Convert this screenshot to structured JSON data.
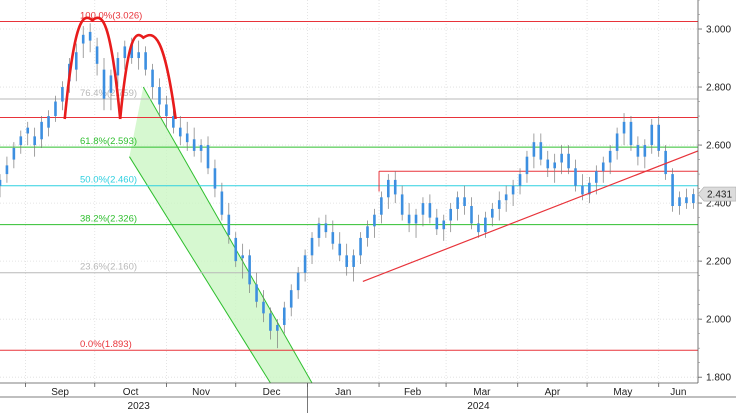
{
  "chart_data": {
    "type": "candlestick",
    "ylim": [
      1.78,
      3.1
    ],
    "y_ticks": [
      {
        "value": 1.8,
        "label": "1.800"
      },
      {
        "value": 2.0,
        "label": "2.000"
      },
      {
        "value": 2.2,
        "label": "2.200"
      },
      {
        "value": 2.4,
        "label": "2.400"
      },
      {
        "value": 2.6,
        "label": "2.600"
      },
      {
        "value": 2.8,
        "label": "2.800"
      },
      {
        "value": 3.0,
        "label": "3.000"
      }
    ],
    "x_axis": {
      "start": "2023-08-21",
      "end": "2024-06-18",
      "month_ticks": [
        {
          "date": "2023-09-01",
          "label": "Sep"
        },
        {
          "date": "2023-10-01",
          "label": "Oct"
        },
        {
          "date": "2023-11-01",
          "label": "Nov"
        },
        {
          "date": "2023-12-01",
          "label": "Dec"
        },
        {
          "date": "2024-01-01",
          "label": "Jan"
        },
        {
          "date": "2024-02-01",
          "label": "Feb"
        },
        {
          "date": "2024-03-01",
          "label": "Mar"
        },
        {
          "date": "2024-04-01",
          "label": "Apr"
        },
        {
          "date": "2024-05-01",
          "label": "May"
        },
        {
          "date": "2024-06-01",
          "label": "Jun"
        }
      ],
      "year_labels": [
        {
          "date": "2023-10-20",
          "label": "2023"
        },
        {
          "date": "2024-03-15",
          "label": "2024"
        }
      ],
      "year_divider": "2024-01-01"
    },
    "last_value": {
      "value": 2.431,
      "label": "2.431"
    },
    "fib_levels": [
      {
        "value": 3.026,
        "label": "100.0%(3.026)",
        "color": "#e8333a"
      },
      {
        "value": 2.759,
        "label": "76.4%(2.759)",
        "color": "#b8b8b8"
      },
      {
        "value": 2.593,
        "label": "61.8%(2.593)",
        "color": "#2fbf2f"
      },
      {
        "value": 2.46,
        "label": "50.0%(2.460)",
        "color": "#2fd0e0"
      },
      {
        "value": 2.326,
        "label": "38.2%(2.326)",
        "color": "#2fbf2f"
      },
      {
        "value": 2.16,
        "label": "23.6%(2.160)",
        "color": "#b8b8b8"
      },
      {
        "value": 1.893,
        "label": "0.0%(1.893)",
        "color": "#e8333a"
      }
    ],
    "neckline": {
      "value": 2.695,
      "color": "#e8333a"
    },
    "breakout_level": {
      "value": 2.51,
      "start": "2024-02-01",
      "color": "#e8333a"
    },
    "trend_line": {
      "from": {
        "date": "2024-01-25",
        "value": 2.13
      },
      "to": {
        "date": "2024-06-18",
        "value": 2.58
      },
      "color": "#e8333a"
    },
    "channel": {
      "upper": [
        {
          "date": "2023-10-22",
          "value": 2.8
        },
        {
          "date": "2024-01-03",
          "value": 1.78
        }
      ],
      "lower": [
        {
          "date": "2023-10-16",
          "value": 2.56
        },
        {
          "date": "2023-12-16",
          "value": 1.78
        }
      ],
      "color": "#2fbf2f"
    },
    "pattern_arcs": [
      {
        "start": {
          "date": "2023-09-18",
          "value": 2.69
        },
        "peak": {
          "date": "2023-09-30",
          "value": 3.03
        },
        "end": {
          "date": "2023-10-12",
          "value": 2.69
        }
      },
      {
        "start": {
          "date": "2023-10-12",
          "value": 2.69
        },
        "peak": {
          "date": "2023-10-22",
          "value": 2.97
        },
        "end": {
          "date": "2023-11-05",
          "value": 2.69
        }
      }
    ],
    "candle_color": "#3d8fe0",
    "candles": [
      [
        "2023-08-21",
        2.46,
        2.5,
        2.42,
        2.48
      ],
      [
        "2023-08-24",
        2.5,
        2.56,
        2.47,
        2.53
      ],
      [
        "2023-08-27",
        2.55,
        2.61,
        2.52,
        2.59
      ],
      [
        "2023-08-30",
        2.6,
        2.65,
        2.57,
        2.63
      ],
      [
        "2023-09-02",
        2.64,
        2.68,
        2.6,
        2.66
      ],
      [
        "2023-09-05",
        2.63,
        2.66,
        2.56,
        2.6
      ],
      [
        "2023-09-08",
        2.62,
        2.7,
        2.59,
        2.68
      ],
      [
        "2023-09-11",
        2.66,
        2.72,
        2.63,
        2.7
      ],
      [
        "2023-09-14",
        2.7,
        2.77,
        2.68,
        2.75
      ],
      [
        "2023-09-17",
        2.75,
        2.82,
        2.72,
        2.8
      ],
      [
        "2023-09-20",
        2.82,
        2.9,
        2.78,
        2.88
      ],
      [
        "2023-09-23",
        2.86,
        2.95,
        2.82,
        2.92
      ],
      [
        "2023-09-26",
        2.95,
        3.01,
        2.9,
        2.98
      ],
      [
        "2023-09-29",
        2.99,
        3.02,
        2.92,
        2.96
      ],
      [
        "2023-10-02",
        2.94,
        2.97,
        2.84,
        2.88
      ],
      [
        "2023-10-05",
        2.86,
        2.9,
        2.72,
        2.76
      ],
      [
        "2023-10-08",
        2.78,
        2.86,
        2.72,
        2.84
      ],
      [
        "2023-10-11",
        2.84,
        2.92,
        2.8,
        2.9
      ],
      [
        "2023-10-14",
        2.9,
        2.96,
        2.86,
        2.94
      ],
      [
        "2023-10-17",
        2.95,
        2.97,
        2.88,
        2.9
      ],
      [
        "2023-10-20",
        2.9,
        2.96,
        2.86,
        2.92
      ],
      [
        "2023-10-23",
        2.92,
        2.94,
        2.84,
        2.86
      ],
      [
        "2023-10-26",
        2.86,
        2.88,
        2.76,
        2.8
      ],
      [
        "2023-10-29",
        2.8,
        2.83,
        2.7,
        2.74
      ],
      [
        "2023-11-01",
        2.74,
        2.77,
        2.66,
        2.7
      ],
      [
        "2023-11-04",
        2.7,
        2.73,
        2.64,
        2.66
      ],
      [
        "2023-11-07",
        2.66,
        2.7,
        2.6,
        2.63
      ],
      [
        "2023-11-10",
        2.64,
        2.68,
        2.58,
        2.61
      ],
      [
        "2023-11-13",
        2.62,
        2.66,
        2.56,
        2.58
      ],
      [
        "2023-11-16",
        2.58,
        2.62,
        2.54,
        2.6
      ],
      [
        "2023-11-19",
        2.6,
        2.63,
        2.5,
        2.52
      ],
      [
        "2023-11-22",
        2.52,
        2.55,
        2.42,
        2.45
      ],
      [
        "2023-11-25",
        2.44,
        2.47,
        2.34,
        2.36
      ],
      [
        "2023-11-28",
        2.36,
        2.4,
        2.26,
        2.29
      ],
      [
        "2023-12-01",
        2.28,
        2.3,
        2.18,
        2.2
      ],
      [
        "2023-12-04",
        2.21,
        2.26,
        2.14,
        2.22
      ],
      [
        "2023-12-07",
        2.22,
        2.24,
        2.09,
        2.12
      ],
      [
        "2023-12-10",
        2.12,
        2.16,
        2.04,
        2.06
      ],
      [
        "2023-12-13",
        2.06,
        2.1,
        1.99,
        2.02
      ],
      [
        "2023-12-16",
        2.02,
        2.04,
        1.93,
        1.96
      ],
      [
        "2023-12-19",
        1.96,
        2.0,
        1.9,
        1.98
      ],
      [
        "2023-12-22",
        1.98,
        2.06,
        1.95,
        2.04
      ],
      [
        "2023-12-25",
        2.04,
        2.12,
        2.01,
        2.1
      ],
      [
        "2023-12-28",
        2.1,
        2.18,
        2.07,
        2.16
      ],
      [
        "2023-12-31",
        2.16,
        2.24,
        2.13,
        2.22
      ],
      [
        "2024-01-03",
        2.22,
        2.3,
        2.19,
        2.28
      ],
      [
        "2024-01-06",
        2.28,
        2.35,
        2.25,
        2.33
      ],
      [
        "2024-01-09",
        2.33,
        2.36,
        2.28,
        2.3
      ],
      [
        "2024-01-12",
        2.3,
        2.34,
        2.24,
        2.26
      ],
      [
        "2024-01-15",
        2.26,
        2.3,
        2.2,
        2.22
      ],
      [
        "2024-01-18",
        2.22,
        2.26,
        2.15,
        2.18
      ],
      [
        "2024-01-21",
        2.18,
        2.24,
        2.13,
        2.22
      ],
      [
        "2024-01-24",
        2.22,
        2.3,
        2.19,
        2.28
      ],
      [
        "2024-01-27",
        2.28,
        2.34,
        2.25,
        2.32
      ],
      [
        "2024-01-30",
        2.32,
        2.38,
        2.28,
        2.36
      ],
      [
        "2024-02-02",
        2.36,
        2.44,
        2.33,
        2.42
      ],
      [
        "2024-02-05",
        2.42,
        2.5,
        2.38,
        2.48
      ],
      [
        "2024-02-08",
        2.48,
        2.51,
        2.4,
        2.43
      ],
      [
        "2024-02-11",
        2.43,
        2.46,
        2.34,
        2.36
      ],
      [
        "2024-02-14",
        2.36,
        2.4,
        2.3,
        2.33
      ],
      [
        "2024-02-17",
        2.33,
        2.38,
        2.28,
        2.36
      ],
      [
        "2024-02-20",
        2.36,
        2.42,
        2.32,
        2.4
      ],
      [
        "2024-02-23",
        2.4,
        2.43,
        2.33,
        2.35
      ],
      [
        "2024-02-26",
        2.35,
        2.38,
        2.29,
        2.31
      ],
      [
        "2024-02-29",
        2.31,
        2.36,
        2.27,
        2.34
      ],
      [
        "2024-03-03",
        2.34,
        2.4,
        2.3,
        2.38
      ],
      [
        "2024-03-06",
        2.38,
        2.44,
        2.34,
        2.42
      ],
      [
        "2024-03-09",
        2.42,
        2.46,
        2.36,
        2.39
      ],
      [
        "2024-03-12",
        2.39,
        2.42,
        2.31,
        2.33
      ],
      [
        "2024-03-15",
        2.33,
        2.36,
        2.28,
        2.3
      ],
      [
        "2024-03-18",
        2.3,
        2.37,
        2.28,
        2.35
      ],
      [
        "2024-03-21",
        2.35,
        2.4,
        2.32,
        2.38
      ],
      [
        "2024-03-24",
        2.38,
        2.44,
        2.34,
        2.41
      ],
      [
        "2024-03-27",
        2.41,
        2.46,
        2.37,
        2.43
      ],
      [
        "2024-03-30",
        2.43,
        2.48,
        2.39,
        2.46
      ],
      [
        "2024-04-02",
        2.46,
        2.52,
        2.43,
        2.5
      ],
      [
        "2024-04-05",
        2.5,
        2.58,
        2.47,
        2.56
      ],
      [
        "2024-04-08",
        2.56,
        2.64,
        2.52,
        2.61
      ],
      [
        "2024-04-11",
        2.61,
        2.64,
        2.53,
        2.55
      ],
      [
        "2024-04-14",
        2.55,
        2.58,
        2.49,
        2.52
      ],
      [
        "2024-04-17",
        2.52,
        2.57,
        2.47,
        2.54
      ],
      [
        "2024-04-20",
        2.54,
        2.6,
        2.5,
        2.57
      ],
      [
        "2024-04-23",
        2.57,
        2.6,
        2.5,
        2.52
      ],
      [
        "2024-04-26",
        2.52,
        2.55,
        2.44,
        2.46
      ],
      [
        "2024-04-29",
        2.46,
        2.5,
        2.41,
        2.43
      ],
      [
        "2024-05-02",
        2.43,
        2.49,
        2.4,
        2.47
      ],
      [
        "2024-05-05",
        2.47,
        2.53,
        2.43,
        2.51
      ],
      [
        "2024-05-08",
        2.51,
        2.56,
        2.47,
        2.54
      ],
      [
        "2024-05-11",
        2.54,
        2.6,
        2.5,
        2.58
      ],
      [
        "2024-05-14",
        2.58,
        2.66,
        2.55,
        2.64
      ],
      [
        "2024-05-17",
        2.64,
        2.71,
        2.6,
        2.68
      ],
      [
        "2024-05-20",
        2.68,
        2.7,
        2.58,
        2.6
      ],
      [
        "2024-05-23",
        2.6,
        2.63,
        2.53,
        2.56
      ],
      [
        "2024-05-26",
        2.56,
        2.62,
        2.52,
        2.6
      ],
      [
        "2024-05-29",
        2.6,
        2.69,
        2.57,
        2.67
      ],
      [
        "2024-06-01",
        2.67,
        2.7,
        2.56,
        2.58
      ],
      [
        "2024-06-04",
        2.58,
        2.6,
        2.48,
        2.5
      ],
      [
        "2024-06-07",
        2.5,
        2.52,
        2.37,
        2.39
      ],
      [
        "2024-06-10",
        2.39,
        2.44,
        2.36,
        2.42
      ],
      [
        "2024-06-13",
        2.42,
        2.45,
        2.38,
        2.4
      ],
      [
        "2024-06-16",
        2.4,
        2.45,
        2.38,
        2.431
      ]
    ]
  }
}
